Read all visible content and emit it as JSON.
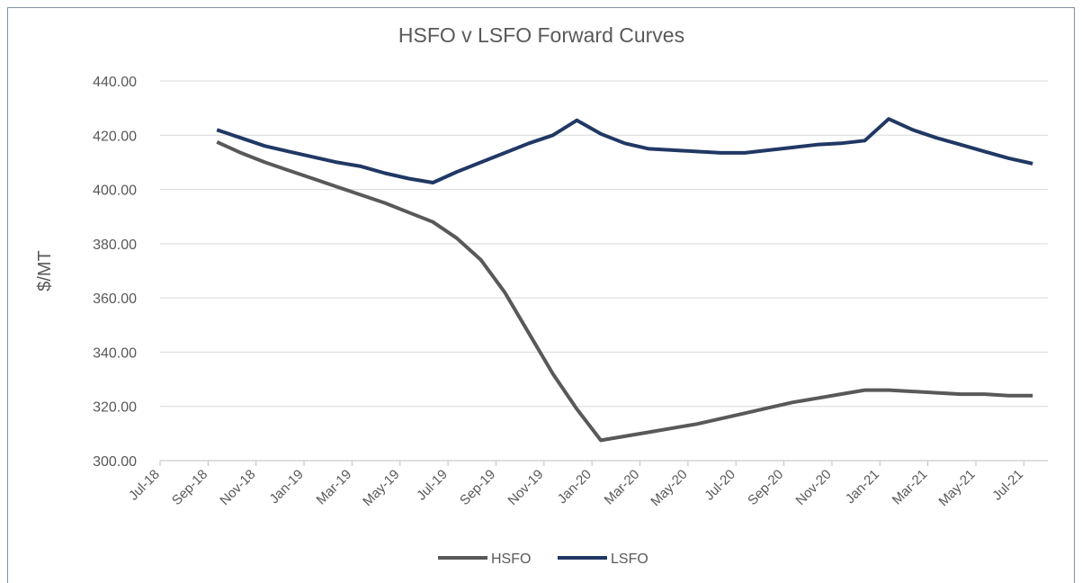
{
  "chart_data": {
    "type": "line",
    "title": "HSFO v LSFO Forward Curves",
    "y_label": "$/MT",
    "x": [
      "Sep-18",
      "Oct-18",
      "Nov-18",
      "Dec-18",
      "Jan-19",
      "Feb-19",
      "Mar-19",
      "Apr-19",
      "May-19",
      "Jun-19",
      "Jul-19",
      "Aug-19",
      "Sep-19",
      "Oct-19",
      "Nov-19",
      "Dec-19",
      "Jan-20",
      "Feb-20",
      "Mar-20",
      "Apr-20",
      "May-20",
      "Jun-20",
      "Jul-20",
      "Aug-20",
      "Sep-20",
      "Oct-20",
      "Nov-20",
      "Dec-20",
      "Jan-21",
      "Feb-21",
      "Mar-21",
      "Apr-21",
      "May-21",
      "Jun-21",
      "Jul-21"
    ],
    "series": [
      {
        "name": "HSFO",
        "color": "#595959",
        "values": [
          417.5,
          413.5,
          410,
          407,
          404,
          401,
          398,
          395,
          391.5,
          388,
          382,
          374,
          362,
          347,
          332,
          319,
          307.5,
          309,
          310.5,
          312,
          313.5,
          315.5,
          317.5,
          319.5,
          321.5,
          323,
          324.5,
          326,
          326,
          325.5,
          325,
          324.5,
          324.5,
          324,
          324
        ]
      },
      {
        "name": "LSFO",
        "color": "#203864",
        "values": [
          422,
          419,
          416,
          414,
          412,
          410,
          408.5,
          406,
          404,
          402.5,
          406.5,
          410,
          413.5,
          417,
          420,
          425.5,
          420.5,
          417,
          415,
          414.5,
          414,
          413.5,
          413.5,
          414.5,
          415.5,
          416.5,
          417,
          418,
          426,
          422,
          419,
          416.5,
          414,
          411.5,
          409.5
        ]
      }
    ],
    "xlim": [
      "Jul-18",
      "Aug-21"
    ],
    "xticks": [
      "Jul-18",
      "Sep-18",
      "Nov-18",
      "Jan-19",
      "Mar-19",
      "May-19",
      "Jul-19",
      "Sep-19",
      "Nov-19",
      "Jan-20",
      "Mar-20",
      "May-20",
      "Jul-20",
      "Sep-20",
      "Nov-20",
      "Jan-21",
      "Mar-21",
      "May-21",
      "Jul-21"
    ],
    "ylim": [
      300,
      440
    ],
    "yticks": [
      {
        "value": 300,
        "label": "300.00"
      },
      {
        "value": 320,
        "label": "320.00"
      },
      {
        "value": 340,
        "label": "340.00"
      },
      {
        "value": 360,
        "label": "360.00"
      },
      {
        "value": 380,
        "label": "380.00"
      },
      {
        "value": 400,
        "label": "400.00"
      },
      {
        "value": 420,
        "label": "420.00"
      },
      {
        "value": 440,
        "label": "440.00"
      }
    ],
    "grid": true,
    "legend": "bottom"
  }
}
